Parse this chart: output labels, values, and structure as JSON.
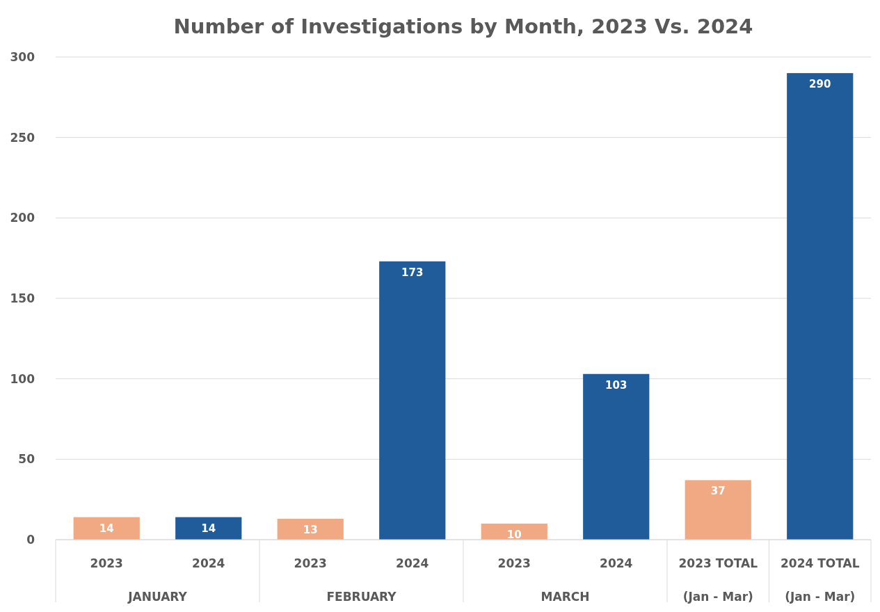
{
  "chart_data": {
    "type": "bar",
    "title": "Number of Investigations by Month, 2023 Vs. 2024",
    "categories": [
      "2023",
      "2024",
      "2023",
      "2024",
      "2023",
      "2024",
      "2023 TOTAL\n(Jan - Mar)",
      "2024 TOTAL\n(Jan - Mar)"
    ],
    "values": [
      14,
      14,
      13,
      173,
      10,
      103,
      37,
      290
    ],
    "colors": [
      "#f1a983",
      "#1f5c99",
      "#f1a983",
      "#1f5c99",
      "#f1a983",
      "#1f5c99",
      "#f1a983",
      "#1f5c99"
    ],
    "ylim": [
      0,
      300
    ],
    "yticks": [
      0,
      50,
      100,
      150,
      200,
      250,
      300
    ],
    "grid": "y",
    "data_labels": true,
    "annotations": [
      "JANUARY",
      "FEBRUARY",
      "MARCH"
    ]
  }
}
